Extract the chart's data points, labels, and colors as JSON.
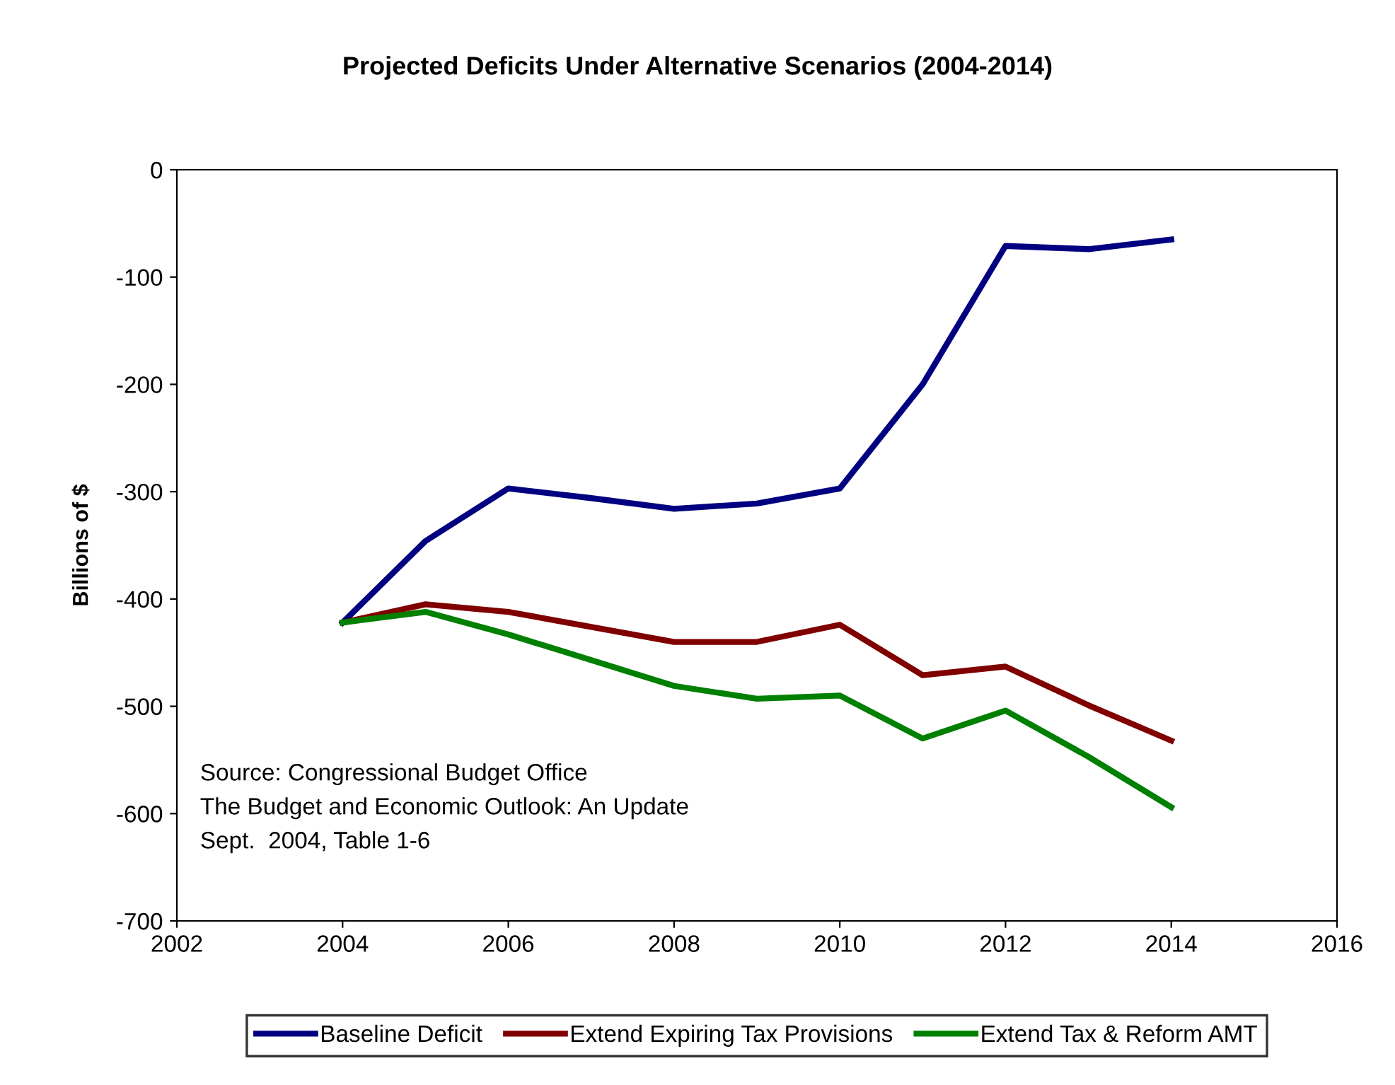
{
  "chart_data": {
    "type": "line",
    "title": "Projected Deficits Under Alternative Scenarios (2004-2014)",
    "ylabel": "Billions of $",
    "x": [
      2004,
      2005,
      2006,
      2007,
      2008,
      2009,
      2010,
      2011,
      2012,
      2013,
      2014
    ],
    "series": [
      {
        "name": "Baseline Deficit",
        "color": "#000080",
        "values": [
          -422,
          -346,
          -297,
          -306,
          -316,
          -311,
          -297,
          -200,
          -71,
          -74,
          -65
        ]
      },
      {
        "name": "Extend Expiring Tax Provisions",
        "color": "#800000",
        "values": [
          -422,
          -405,
          -412,
          -426,
          -440,
          -440,
          -424,
          -471,
          -463,
          -499,
          -532
        ]
      },
      {
        "name": "Extend Tax & Reform AMT",
        "color": "#008000",
        "values": [
          -422,
          -412,
          -433,
          -457,
          -481,
          -493,
          -490,
          -530,
          -504,
          -547,
          -594
        ]
      }
    ],
    "xlim": [
      2002,
      2016
    ],
    "xticks": [
      2002,
      2004,
      2006,
      2008,
      2010,
      2012,
      2014,
      2016
    ],
    "ylim": [
      -700,
      0
    ],
    "yticks": [
      -700,
      -600,
      -500,
      -400,
      -300,
      -200,
      -100,
      0
    ],
    "annotations": [
      "Source: Congressional Budget Office\nThe Budget and Economic Outlook: An Update\nSept.  2004, Table 1-6"
    ],
    "legend": "bottom",
    "grid": false,
    "marker": "none",
    "line_style": "solid"
  }
}
